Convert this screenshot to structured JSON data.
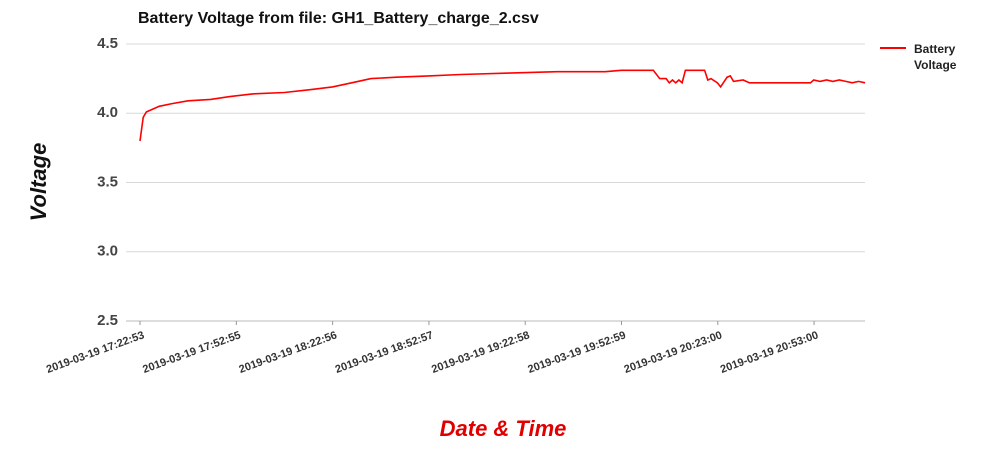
{
  "chart_data": {
    "type": "line",
    "title": "Battery Voltage from file: GH1_Battery_charge_2.csv",
    "x_label": "Date & Time",
    "y_label": "Voltage",
    "x": [
      "2019-03-19 17:22:53",
      "2019-03-19 17:23:53",
      "2019-03-19 17:24:53",
      "2019-03-19 17:26:53",
      "2019-03-19 17:28:53",
      "2019-03-19 17:32:53",
      "2019-03-19 17:37:53",
      "2019-03-19 17:44:53",
      "2019-03-19 17:50:53",
      "2019-03-19 17:57:53",
      "2019-03-19 18:07:53",
      "2019-03-19 18:15:53",
      "2019-03-19 18:22:53",
      "2019-03-19 18:28:53",
      "2019-03-19 18:34:53",
      "2019-03-19 18:42:53",
      "2019-03-19 18:52:53",
      "2019-03-19 19:02:53",
      "2019-03-19 19:17:53",
      "2019-03-19 19:32:53",
      "2019-03-19 19:47:53",
      "2019-03-19 19:52:53",
      "2019-03-19 20:02:53",
      "2019-03-19 20:04:53",
      "2019-03-19 20:06:53",
      "2019-03-19 20:07:53",
      "2019-03-19 20:08:53",
      "2019-03-19 20:09:53",
      "2019-03-19 20:10:53",
      "2019-03-19 20:11:53",
      "2019-03-19 20:12:53",
      "2019-03-19 20:18:53",
      "2019-03-19 20:19:53",
      "2019-03-19 20:20:53",
      "2019-03-19 20:22:53",
      "2019-03-19 20:23:53",
      "2019-03-19 20:25:53",
      "2019-03-19 20:26:53",
      "2019-03-19 20:27:53",
      "2019-03-19 20:30:53",
      "2019-03-19 20:32:53",
      "2019-03-19 20:51:53",
      "2019-03-19 20:52:53",
      "2019-03-19 20:54:53",
      "2019-03-19 20:56:53",
      "2019-03-19 20:58:53",
      "2019-03-19 21:00:53",
      "2019-03-19 21:02:53",
      "2019-03-19 21:04:53",
      "2019-03-19 21:06:53",
      "2019-03-19 21:08:53"
    ],
    "series": [
      {
        "name": "Battery Voltage",
        "color": "#ff0000",
        "values": [
          3.8,
          3.97,
          4.01,
          4.03,
          4.05,
          4.07,
          4.09,
          4.1,
          4.12,
          4.14,
          4.15,
          4.17,
          4.19,
          4.22,
          4.25,
          4.26,
          4.27,
          4.28,
          4.29,
          4.3,
          4.3,
          4.31,
          4.31,
          4.25,
          4.25,
          4.22,
          4.24,
          4.22,
          4.24,
          4.22,
          4.31,
          4.31,
          4.24,
          4.25,
          4.22,
          4.19,
          4.26,
          4.27,
          4.23,
          4.24,
          4.22,
          4.22,
          4.24,
          4.23,
          4.24,
          4.23,
          4.24,
          4.23,
          4.22,
          4.23,
          4.22
        ]
      }
    ],
    "xlim": [
      "2019-03-19 17:22:53",
      "2019-03-19 21:08:53"
    ],
    "xticks": [
      "2019-03-19 17:22:53",
      "2019-03-19 17:52:55",
      "2019-03-19 18:22:56",
      "2019-03-19 18:52:57",
      "2019-03-19 19:22:58",
      "2019-03-19 19:52:59",
      "2019-03-19 20:23:00",
      "2019-03-19 20:53:00"
    ],
    "ylim": [
      2.5,
      4.5
    ],
    "yticks": [
      {
        "value": 2.5,
        "label": "2.5"
      },
      {
        "value": 3,
        "label": "3.0"
      },
      {
        "value": 3.5,
        "label": "3.5"
      },
      {
        "value": 4,
        "label": "4.0"
      },
      {
        "value": 4.5,
        "label": "4.5"
      }
    ],
    "grid": true,
    "legend": "right"
  }
}
